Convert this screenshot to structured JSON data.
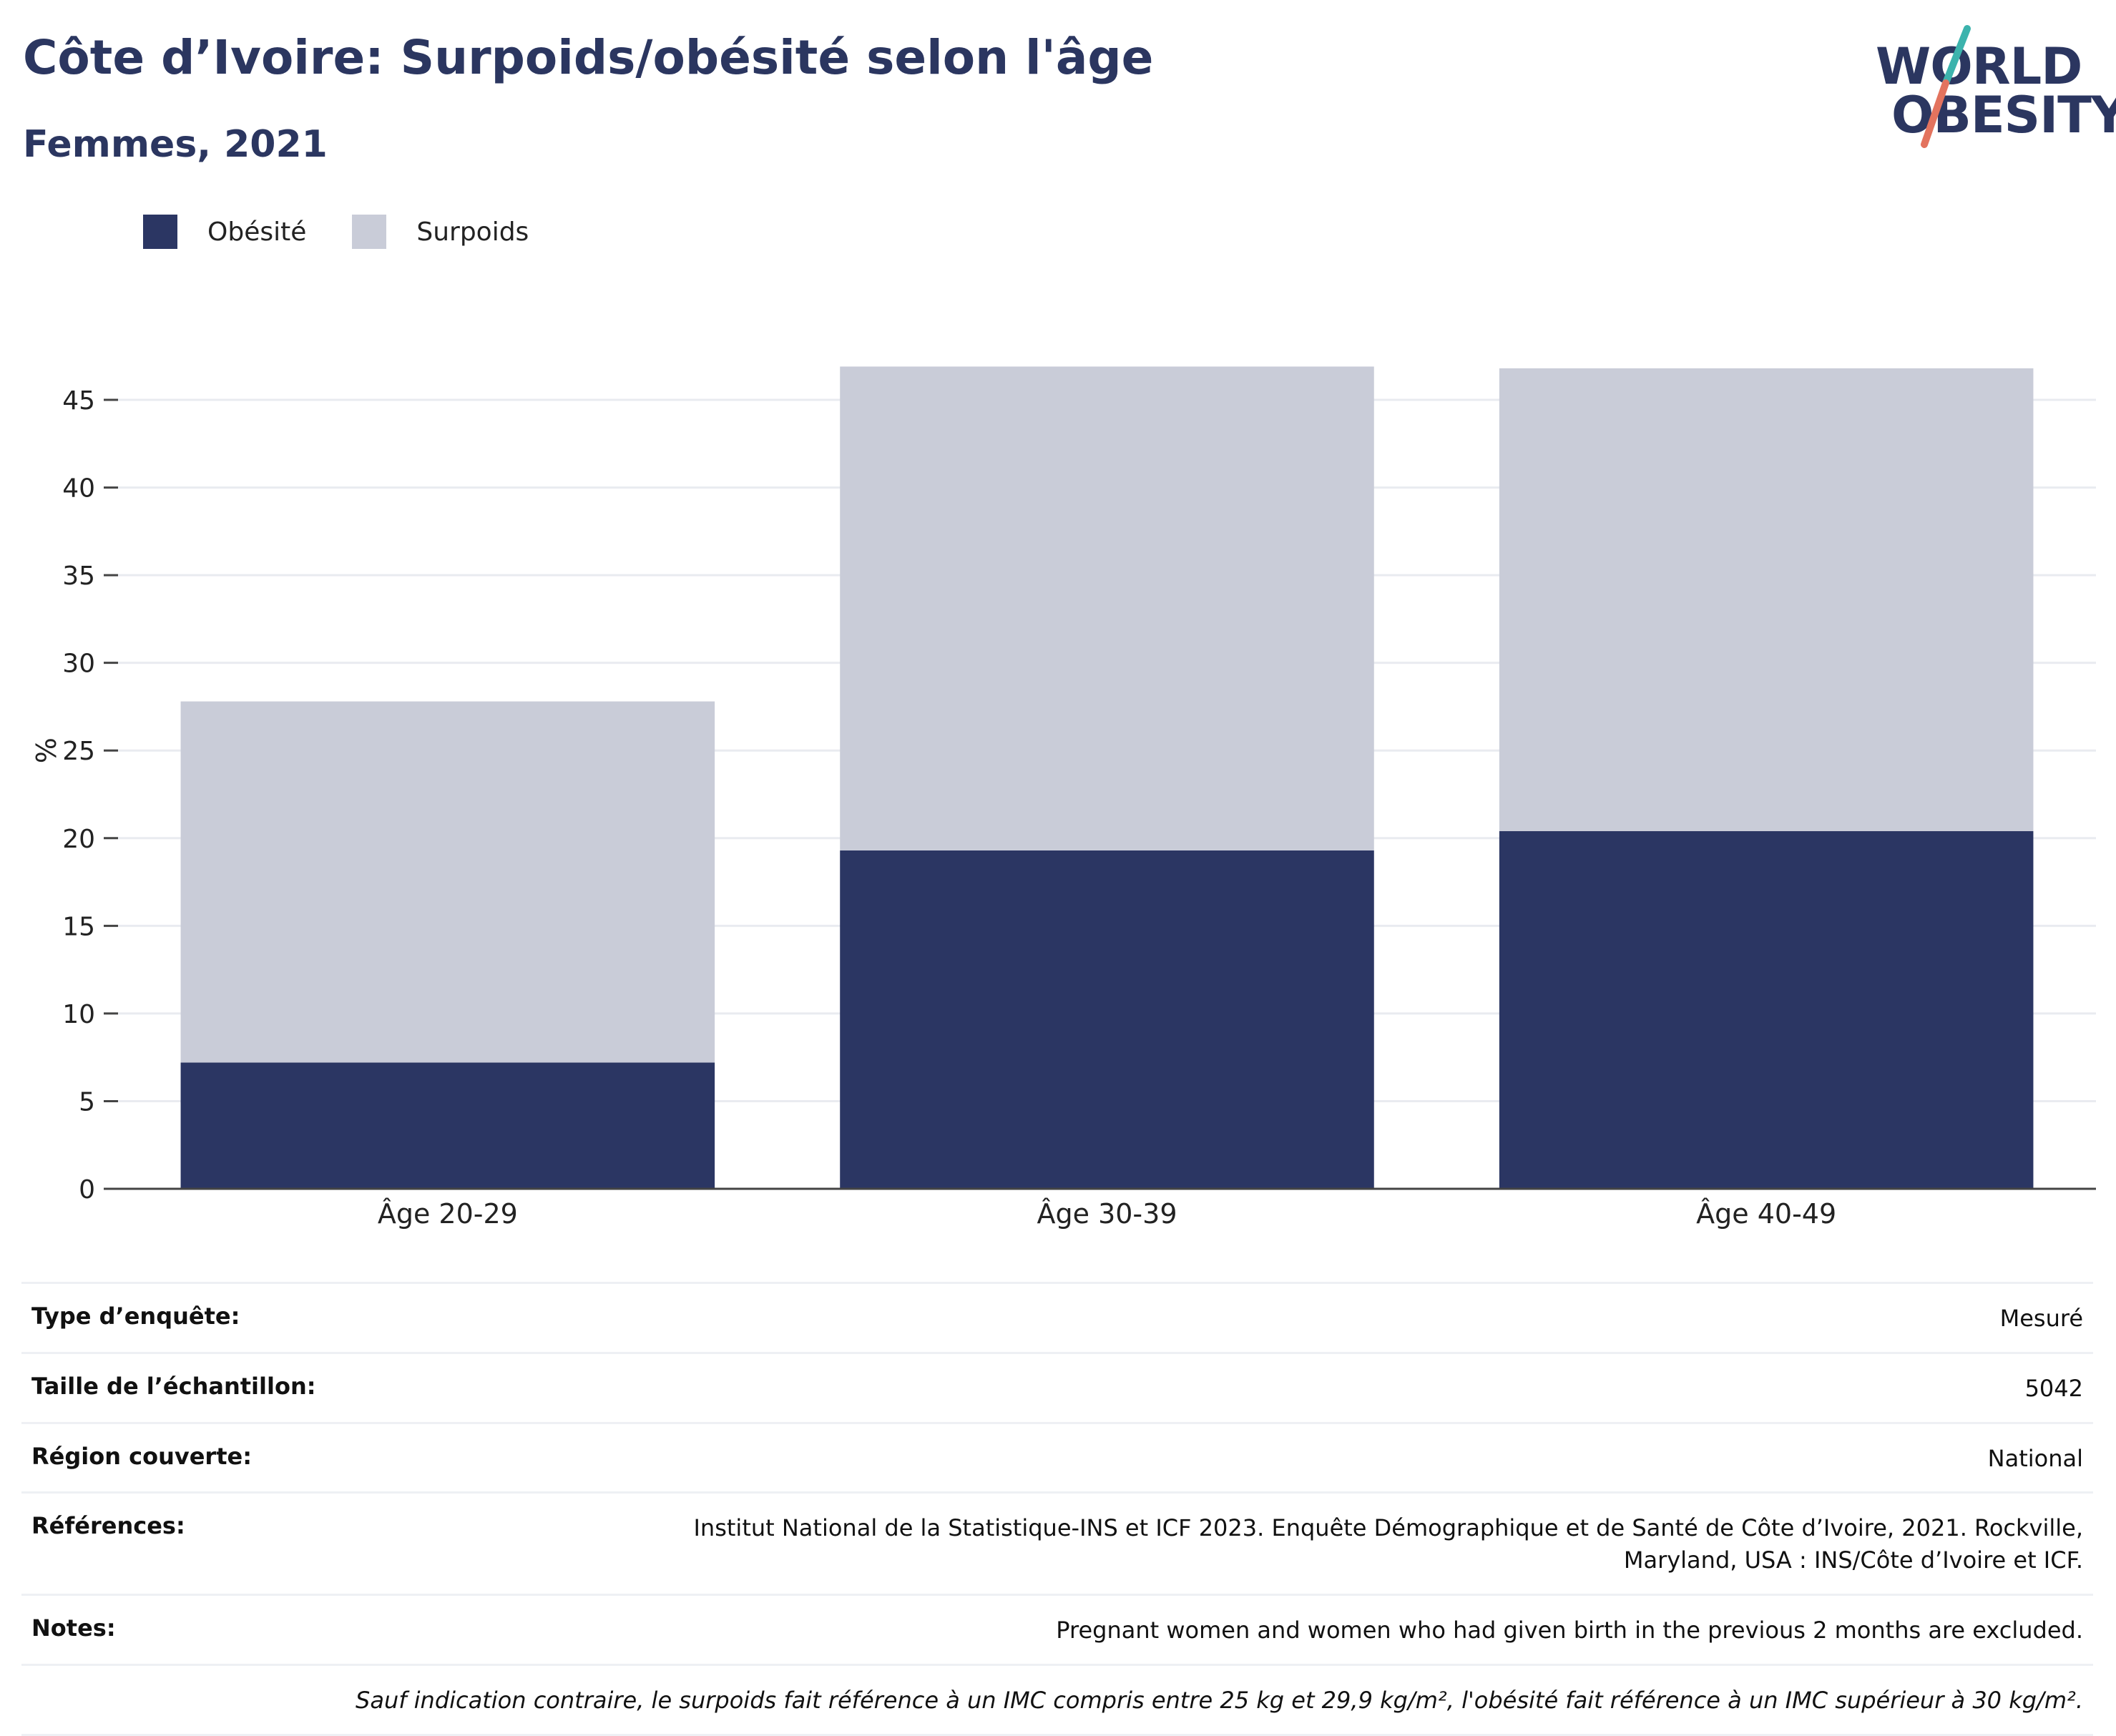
{
  "header": {
    "title": "Côte d’Ivoire: Surpoids/obésité selon l'âge",
    "subtitle": "Femmes, 2021"
  },
  "logo": {
    "line1": "WORLD",
    "line2": "OBESITY",
    "accent_teal": "#3cb3ad",
    "accent_coral": "#e3735e"
  },
  "legend": [
    {
      "label": "Obésité",
      "color": "#2b3663"
    },
    {
      "label": "Surpoids",
      "color": "#c9ccd8"
    }
  ],
  "chart_data": {
    "type": "bar",
    "stacked": true,
    "categories": [
      "Âge 20-29",
      "Âge 30-39",
      "Âge 40-49"
    ],
    "series": [
      {
        "name": "Obésité",
        "values": [
          7.2,
          19.3,
          20.4
        ],
        "color": "#2b3663"
      },
      {
        "name": "Surpoids",
        "values": [
          20.6,
          27.6,
          26.4
        ],
        "color": "#c9ccd8"
      }
    ],
    "ylabel": "%",
    "ylim": [
      0,
      47
    ],
    "yticks": [
      0,
      5,
      10,
      15,
      20,
      25,
      30,
      35,
      40,
      45
    ],
    "grid": true,
    "legend_position": "top-left"
  },
  "meta": {
    "survey_type": {
      "label": "Type d’enquête:",
      "value": "Mesuré"
    },
    "sample_size": {
      "label": "Taille de l’échantillon:",
      "value": "5042"
    },
    "region": {
      "label": "Région couverte:",
      "value": "National"
    },
    "references": {
      "label": "Références:",
      "value": "Institut National de la Statistique-INS et ICF 2023. Enquête Démographique et de Santé de Côte d’Ivoire, 2021. Rockville, Maryland, USA : INS/Côte d’Ivoire et ICF."
    },
    "notes": {
      "label": "Notes:",
      "value": "Pregnant women and women who had given birth in the previous 2 months are excluded."
    },
    "footnote": "Sauf indication contraire, le surpoids fait référence à un IMC compris entre 25 kg et 29,9 kg/m², l'obésité fait référence à un IMC supérieur à 30 kg/m²."
  }
}
